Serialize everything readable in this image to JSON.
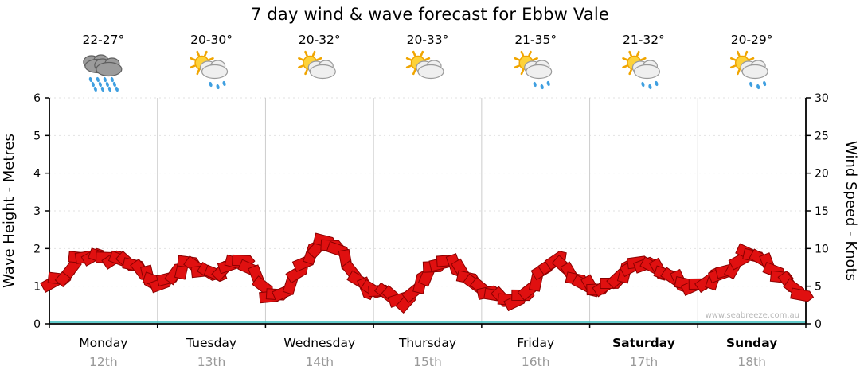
{
  "title": "7 day wind & wave forecast for Ebbw Vale",
  "watermark": "www.seabreeze.com.au",
  "days": [
    {
      "name": "Monday",
      "date": "12th",
      "temp": "22-27°",
      "icon": "rain-cloud",
      "weekend": false
    },
    {
      "name": "Tuesday",
      "date": "13th",
      "temp": "20-30°",
      "icon": "sun-cloud-rain",
      "weekend": false
    },
    {
      "name": "Wednesday",
      "date": "14th",
      "temp": "20-32°",
      "icon": "sun-cloud",
      "weekend": false
    },
    {
      "name": "Thursday",
      "date": "15th",
      "temp": "20-33°",
      "icon": "sun-cloud",
      "weekend": false
    },
    {
      "name": "Friday",
      "date": "16th",
      "temp": "21-35°",
      "icon": "sun-cloud-rain",
      "weekend": false
    },
    {
      "name": "Saturday",
      "date": "17th",
      "temp": "21-32°",
      "icon": "sun-cloud-rain",
      "weekend": true
    },
    {
      "name": "Sunday",
      "date": "18th",
      "temp": "20-29°",
      "icon": "sun-cloud-rain",
      "weekend": true
    }
  ],
  "chart_data": {
    "type": "line",
    "title": "7 day wind & wave forecast for Ebbw Vale",
    "categories": [
      "Monday 12th",
      "Tuesday 13th",
      "Wednesday 14th",
      "Thursday 15th",
      "Friday 16th",
      "Saturday 17th",
      "Sunday 18th"
    ],
    "points_per_day": 8,
    "ylabel_left": "Wave Height - Metres",
    "ylabel_right": "Wind Speed - Knots",
    "ylim_left": [
      0,
      6
    ],
    "ylim_right": [
      0,
      30
    ],
    "yticks_left": [
      0,
      1,
      2,
      3,
      4,
      5,
      6
    ],
    "yticks_right": [
      0,
      5,
      10,
      15,
      20,
      25,
      30
    ],
    "legend": "none",
    "grid": "day separators + faint horizontal lines",
    "marker_style": "red wind arrows",
    "series": [
      {
        "name": "Wind Speed (knots)",
        "values": [
          5.5,
          6.5,
          8.8,
          9.0,
          8.8,
          8.5,
          7.8,
          6.2,
          5.3,
          6.8,
          8.2,
          7.0,
          6.6,
          7.8,
          8.4,
          6.2,
          3.6,
          4.2,
          6.8,
          9.5,
          11.0,
          9.8,
          6.8,
          4.6,
          4.4,
          3.6,
          3.0,
          5.6,
          7.6,
          8.4,
          7.0,
          5.2,
          4.2,
          3.4,
          3.0,
          4.6,
          7.2,
          8.6,
          6.6,
          5.2,
          4.6,
          5.4,
          7.0,
          8.2,
          7.6,
          6.6,
          5.6,
          5.0,
          5.6,
          6.6,
          7.6,
          9.4,
          8.6,
          7.0,
          5.4,
          3.8
        ]
      }
    ]
  },
  "colors": {
    "arrow": "#e01010",
    "arrow_outline": "#8a0000",
    "axis": "#000000",
    "day_separator": "#cccccc",
    "hgrid": "#e2e2e2",
    "baseline": "#2fb8b8",
    "date_text": "#999999",
    "watermark_text": "#b8b8b8",
    "sun": "#fdd23a",
    "sun_stroke": "#f0a500",
    "cloud_light": "#efefef",
    "cloud_light_stroke": "#9a9a9a",
    "cloud_dark": "#9b9b9b",
    "cloud_dark_stroke": "#5f5f5f",
    "raindrop": "#3f9fe0"
  }
}
